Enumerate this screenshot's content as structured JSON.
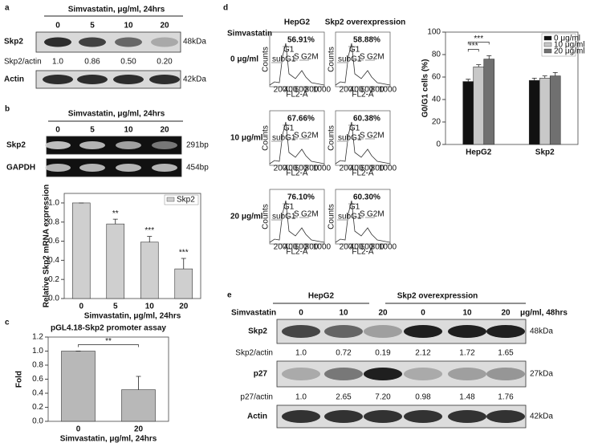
{
  "panel_labels": [
    "a",
    "b",
    "c",
    "d",
    "e"
  ],
  "panel_a": {
    "header": "Simvastatin, μg/ml, 24hrs",
    "doses": [
      "0",
      "5",
      "10",
      "20"
    ],
    "rows": [
      "Skp2",
      "Actin"
    ],
    "sizes": [
      "48kDa",
      "42kDa"
    ],
    "ratio_label": "Skp2/actin",
    "ratios": [
      "1.0",
      "0.86",
      "0.50",
      "0.20"
    ]
  },
  "panel_b_gel": {
    "header": "Simvastatin, μg/ml, 24hrs",
    "doses": [
      "0",
      "5",
      "10",
      "20"
    ],
    "rows": [
      "Skp2",
      "GAPDH"
    ],
    "sizes": [
      "291bp",
      "454bp"
    ]
  },
  "panel_d_flow": {
    "treatment_label": "Simvastatin",
    "columns": [
      "HepG2",
      "Skp2 overexpression"
    ],
    "rows": [
      "0 μg/ml",
      "10 μg/ml",
      "20 μg/ml"
    ],
    "percentages": [
      [
        "56.91%",
        "58.88%"
      ],
      [
        "67.66%",
        "60.38%"
      ],
      [
        "76.10%",
        "60.30%"
      ]
    ],
    "gate_labels": [
      "subG1",
      "G1",
      "S",
      "G2M"
    ],
    "x_axis_label": "FL2-A",
    "y_axis_label": "Counts",
    "x_ticks": [
      "200",
      "400",
      "600",
      "800",
      "1000"
    ]
  },
  "panel_e": {
    "groups": [
      "HepG2",
      "Skp2 overexpression"
    ],
    "treatment_label": "Simvastatin",
    "doses": [
      "0",
      "10",
      "20",
      "0",
      "10",
      "20"
    ],
    "dose_unit": "μg/ml, 48hrs",
    "rows": [
      "Skp2",
      "p27",
      "Actin"
    ],
    "sizes": [
      "48kDa",
      "27kDa",
      "42kDa"
    ],
    "ratio_labels": [
      "Skp2/actin",
      "p27/actin"
    ],
    "ratios": [
      [
        "1.0",
        "0.72",
        "0.19",
        "2.12",
        "1.72",
        "1.65"
      ],
      [
        "1.0",
        "2.65",
        "7.20",
        "0.98",
        "1.48",
        "1.76"
      ]
    ]
  },
  "chart_data": [
    {
      "type": "bar",
      "y_label": "Relative Skp2 mRNA expression",
      "x_label": "Simvastatin, μg/ml, 24hrs",
      "categories": [
        "0",
        "5",
        "10",
        "20"
      ],
      "series": [
        {
          "name": "Skp2",
          "color": "#cfcfcf",
          "values": [
            1.0,
            0.78,
            0.59,
            0.31
          ],
          "errors": [
            0,
            0.05,
            0.06,
            0.11
          ],
          "significance": [
            null,
            "**",
            "***",
            "***"
          ]
        }
      ],
      "ylim": [
        0,
        1.1
      ],
      "yticks": [
        {
          "value": 0,
          "label": "0.0"
        },
        {
          "value": 0.2,
          "label": "0.2"
        },
        {
          "value": 0.4,
          "label": "0.4"
        },
        {
          "value": 0.6,
          "label": "0.6"
        },
        {
          "value": 0.8,
          "label": "0.8"
        },
        {
          "value": 1,
          "label": "1.0"
        }
      ],
      "legend": "upper right"
    },
    {
      "type": "bar",
      "title": "pGL4.18-Skp2 promoter assay",
      "y_label": "Fold",
      "x_label": "Simvastatin, μg/ml, 24hrs",
      "categories": [
        "0",
        "20"
      ],
      "series": [
        {
          "color": "#b8b8b8",
          "values": [
            1.0,
            0.45
          ],
          "errors": [
            0,
            0.19
          ],
          "significance": [
            null,
            "**"
          ]
        }
      ],
      "ylim": [
        0,
        1.2
      ],
      "yticks": [
        {
          "value": 0,
          "label": "0.0"
        },
        {
          "value": 0.2,
          "label": "0.2"
        },
        {
          "value": 0.4,
          "label": "0.4"
        },
        {
          "value": 0.6,
          "label": "0.6"
        },
        {
          "value": 0.8,
          "label": "0.8"
        },
        {
          "value": 1,
          "label": "1.0"
        },
        {
          "value": 1.2,
          "label": "1.2"
        }
      ]
    },
    {
      "type": "bar",
      "y_label": "G0/G1 cells (%)",
      "categories": [
        "HepG2",
        "Skp2"
      ],
      "series": [
        {
          "name": "0 μg/ml",
          "color": "#111111",
          "values": [
            56,
            57
          ],
          "errors": [
            2,
            2
          ]
        },
        {
          "name": "10 μg/ml",
          "color": "#c8c8c8",
          "values": [
            69,
            59
          ],
          "errors": [
            2,
            2
          ],
          "significance": [
            "***",
            null
          ]
        },
        {
          "name": "20 μg/ml",
          "color": "#707070",
          "values": [
            76,
            61
          ],
          "errors": [
            3,
            3
          ],
          "significance": [
            "***",
            null
          ]
        }
      ],
      "ylim": [
        0,
        100
      ],
      "yticks": [
        0,
        20,
        40,
        60,
        80,
        100
      ],
      "legend": "upper right"
    }
  ]
}
